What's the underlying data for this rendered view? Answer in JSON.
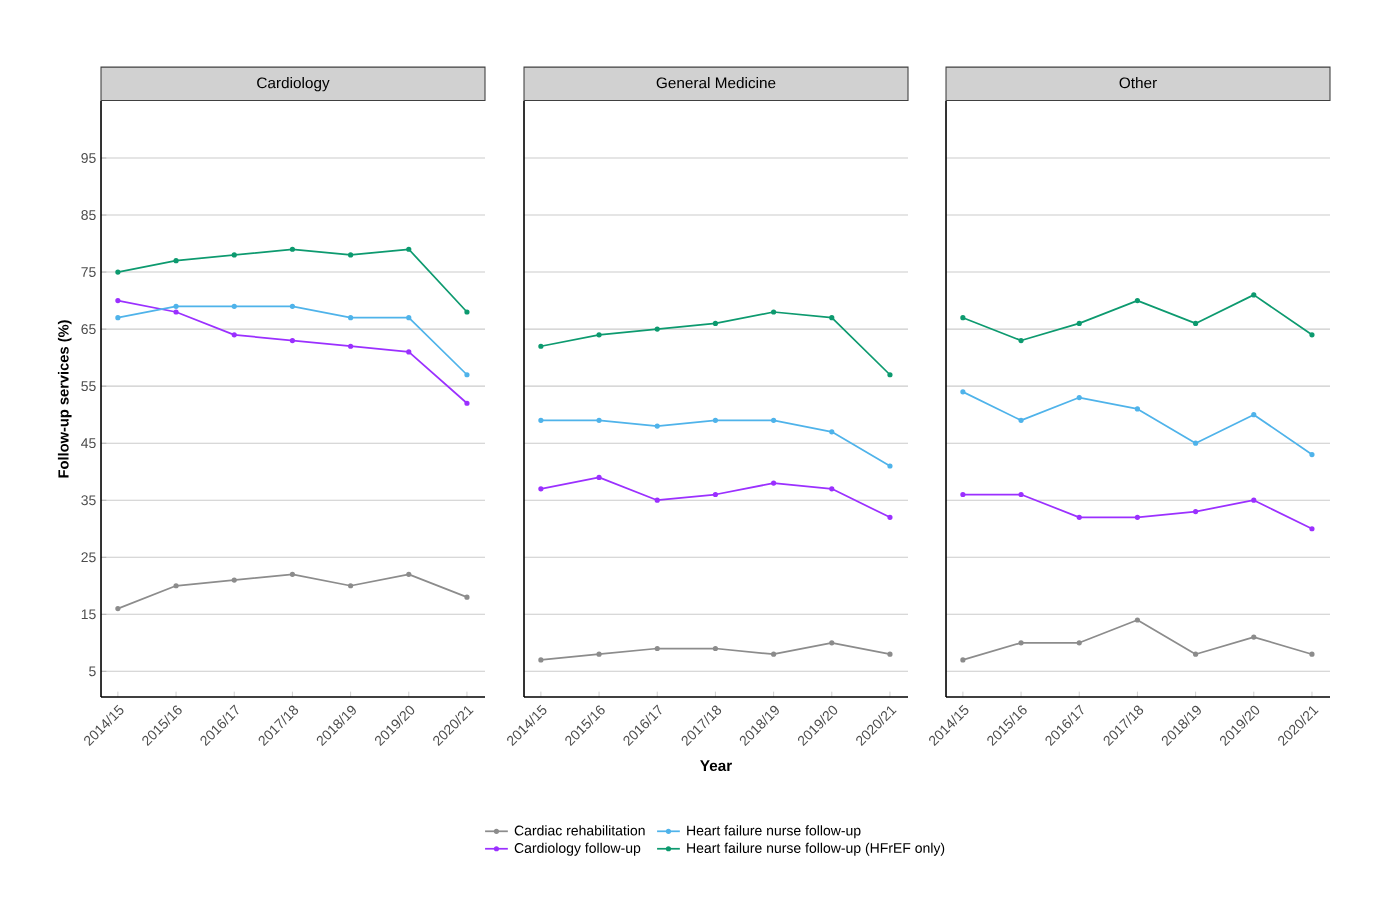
{
  "chart_data": [
    {
      "type": "line",
      "title": "Cardiology",
      "ylabel": "Follow-up services (%)",
      "categories": [
        "2014/15",
        "2015/16",
        "2016/17",
        "2017/18",
        "2018/19",
        "2019/20",
        "2020/21"
      ],
      "ylim": [
        0.5,
        105
      ],
      "yticks": [
        5,
        15,
        25,
        35,
        45,
        55,
        65,
        75,
        85,
        95
      ],
      "grid": "y",
      "marker": "circle",
      "legend": false,
      "series": [
        {
          "color": "#8c8c8c",
          "values": [
            16,
            20,
            21,
            22,
            20,
            22,
            18
          ]
        },
        {
          "color": "#9b30ff",
          "values": [
            70,
            68,
            64,
            63,
            62,
            61,
            52
          ]
        },
        {
          "color": "#4fb3ea",
          "values": [
            67,
            69,
            69,
            69,
            67,
            67,
            57
          ]
        },
        {
          "color": "#0d9a6f",
          "values": [
            75,
            77,
            78,
            79,
            78,
            79,
            68
          ]
        }
      ]
    },
    {
      "type": "line",
      "title": "General Medicine",
      "xlabel": "Year",
      "categories": [
        "2014/15",
        "2015/16",
        "2016/17",
        "2017/18",
        "2018/19",
        "2019/20",
        "2020/21"
      ],
      "ylim": [
        0.5,
        105
      ],
      "yticks": [
        5,
        15,
        25,
        35,
        45,
        55,
        65,
        75,
        85,
        95
      ],
      "tick_labels": "x",
      "grid": "y",
      "marker": "circle",
      "legend": "bottom",
      "series": [
        {
          "name": "Cardiac rehabilitation",
          "color": "#8c8c8c",
          "values": [
            7,
            8,
            9,
            9,
            8,
            10,
            8
          ]
        },
        {
          "name": "Heart failure nurse follow-up",
          "color": "#4fb3ea",
          "values": [
            49,
            49,
            48,
            49,
            49,
            47,
            41
          ]
        },
        {
          "name": "Cardiology follow-up",
          "color": "#9b30ff",
          "values": [
            37,
            39,
            35,
            36,
            38,
            37,
            32
          ]
        },
        {
          "name": "Heart failure nurse follow-up (HFrEF only)",
          "color": "#0d9a6f",
          "values": [
            62,
            64,
            65,
            66,
            68,
            67,
            57
          ]
        }
      ]
    },
    {
      "type": "line",
      "title": "Other",
      "categories": [
        "2014/15",
        "2015/16",
        "2016/17",
        "2017/18",
        "2018/19",
        "2019/20",
        "2020/21"
      ],
      "ylim": [
        0.5,
        105
      ],
      "yticks": [
        5,
        15,
        25,
        35,
        45,
        55,
        65,
        75,
        85,
        95
      ],
      "tick_labels": "x",
      "grid": "y",
      "marker": "circle",
      "legend": false,
      "series": [
        {
          "color": "#8c8c8c",
          "values": [
            7,
            10,
            10,
            14,
            8,
            11,
            8
          ]
        },
        {
          "color": "#9b30ff",
          "values": [
            36,
            36,
            32,
            32,
            33,
            35,
            30
          ]
        },
        {
          "color": "#4fb3ea",
          "values": [
            54,
            49,
            53,
            51,
            45,
            50,
            43
          ]
        },
        {
          "color": "#0d9a6f",
          "values": [
            67,
            63,
            66,
            70,
            66,
            71,
            64
          ]
        }
      ]
    }
  ]
}
